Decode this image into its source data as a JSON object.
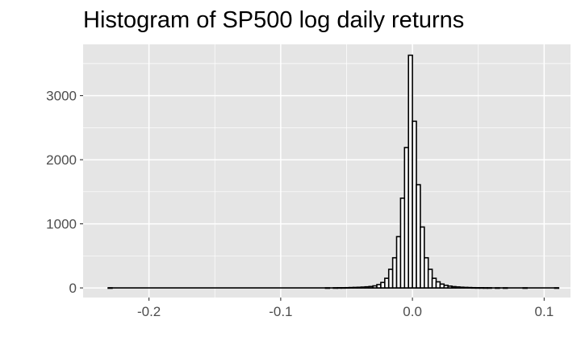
{
  "chart_data": {
    "type": "bar",
    "title": "Histogram of SP500 log daily returns",
    "xlabel": "",
    "ylabel": "",
    "xlim": [
      -0.25,
      0.12
    ],
    "ylim": [
      -150,
      3800
    ],
    "bin_width": 0.003,
    "x_ticks": [
      -0.2,
      -0.1,
      0.0,
      0.1
    ],
    "x_tick_labels": [
      "-0.2",
      "-0.1",
      "0.0",
      "0.1"
    ],
    "x_minor_ticks": [
      -0.15,
      -0.05,
      0.05
    ],
    "y_ticks": [
      0,
      1000,
      2000,
      3000
    ],
    "y_tick_labels": [
      "0",
      "1000",
      "2000",
      "3000"
    ],
    "y_minor_ticks": [
      500,
      1500,
      2500,
      3500
    ],
    "grid": true,
    "bins": [
      {
        "x": -0.2295,
        "count": 1
      },
      {
        "x": -0.0645,
        "count": 1
      },
      {
        "x": -0.0585,
        "count": 2
      },
      {
        "x": -0.0555,
        "count": 3
      },
      {
        "x": -0.0525,
        "count": 3
      },
      {
        "x": -0.0495,
        "count": 4
      },
      {
        "x": -0.0465,
        "count": 6
      },
      {
        "x": -0.0435,
        "count": 8
      },
      {
        "x": -0.0405,
        "count": 10
      },
      {
        "x": -0.0375,
        "count": 13
      },
      {
        "x": -0.0345,
        "count": 17
      },
      {
        "x": -0.0315,
        "count": 22
      },
      {
        "x": -0.0285,
        "count": 32
      },
      {
        "x": -0.0255,
        "count": 52
      },
      {
        "x": -0.0225,
        "count": 85
      },
      {
        "x": -0.0195,
        "count": 150
      },
      {
        "x": -0.0165,
        "count": 290
      },
      {
        "x": -0.0135,
        "count": 470
      },
      {
        "x": -0.0105,
        "count": 800
      },
      {
        "x": -0.0075,
        "count": 1400
      },
      {
        "x": -0.0045,
        "count": 2190
      },
      {
        "x": -0.0015,
        "count": 3630
      },
      {
        "x": 0.0015,
        "count": 2600
      },
      {
        "x": 0.0045,
        "count": 1610
      },
      {
        "x": 0.0075,
        "count": 950
      },
      {
        "x": 0.0105,
        "count": 470
      },
      {
        "x": 0.0135,
        "count": 290
      },
      {
        "x": 0.0165,
        "count": 150
      },
      {
        "x": 0.0195,
        "count": 95
      },
      {
        "x": 0.0225,
        "count": 60
      },
      {
        "x": 0.0255,
        "count": 40
      },
      {
        "x": 0.0285,
        "count": 28
      },
      {
        "x": 0.0315,
        "count": 20
      },
      {
        "x": 0.0345,
        "count": 15
      },
      {
        "x": 0.0375,
        "count": 11
      },
      {
        "x": 0.0405,
        "count": 8
      },
      {
        "x": 0.0435,
        "count": 6
      },
      {
        "x": 0.0465,
        "count": 4
      },
      {
        "x": 0.0495,
        "count": 3
      },
      {
        "x": 0.0525,
        "count": 3
      },
      {
        "x": 0.0555,
        "count": 2
      },
      {
        "x": 0.0585,
        "count": 2
      },
      {
        "x": 0.0645,
        "count": 1
      },
      {
        "x": 0.0705,
        "count": 1
      },
      {
        "x": 0.0855,
        "count": 1
      },
      {
        "x": 0.1095,
        "count": 1
      }
    ],
    "colors": {
      "panel": "#e5e5e5",
      "grid": "#ffffff",
      "bar_fill": "#ffffff",
      "bar_outline": "#000000",
      "tick_label": "#4d4d4d",
      "tick_mark": "#333333",
      "title": "#000000"
    }
  }
}
